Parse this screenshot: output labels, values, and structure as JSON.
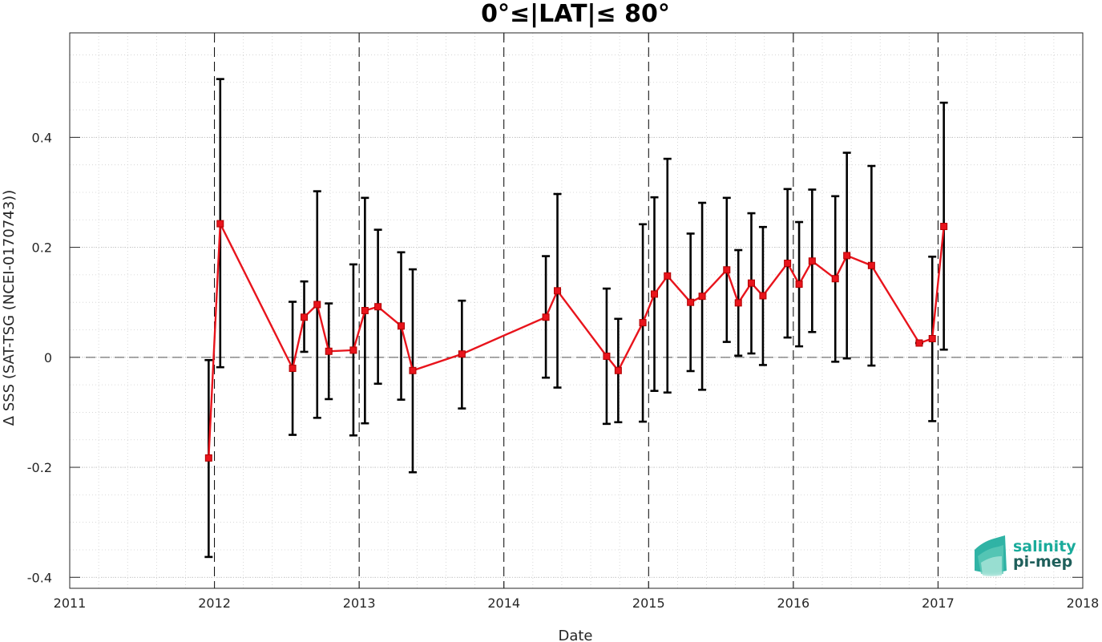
{
  "chart_data": {
    "type": "line",
    "title": "0°≤|LAT|≤ 80°",
    "xlabel": "Date",
    "ylabel": "Δ SSS (SAT-TSG (NCEI-0170743))",
    "xlim": [
      2011,
      2018
    ],
    "ylim": [
      -0.42,
      0.59
    ],
    "x_ticks": [
      2011,
      2012,
      2013,
      2014,
      2015,
      2016,
      2017,
      2018
    ],
    "x_tick_labels": [
      "2011",
      "2012",
      "2013",
      "2014",
      "2015",
      "2016",
      "2017",
      "2018"
    ],
    "y_ticks": [
      -0.4,
      -0.2,
      0,
      0.2,
      0.4
    ],
    "y_tick_labels": [
      "-0.4",
      "-0.2",
      "0",
      "0.2",
      "0.4"
    ],
    "grid": "major and minor, dotted",
    "year_boundary_lines": "dashed vertical at each year",
    "zero_line": "dashed horizontal at 0",
    "series": [
      {
        "color": "#e8141c",
        "errorbar_color": "#000000",
        "marker": "square",
        "points": [
          {
            "x": 2011.96,
            "y": -0.183,
            "low": -0.363,
            "high": -0.005
          },
          {
            "x": 2012.04,
            "y": 0.243,
            "low": -0.018,
            "high": 0.506
          },
          {
            "x": 2012.54,
            "y": -0.02,
            "low": -0.141,
            "high": 0.101
          },
          {
            "x": 2012.62,
            "y": 0.073,
            "low": 0.01,
            "high": 0.138
          },
          {
            "x": 2012.71,
            "y": 0.096,
            "low": -0.11,
            "high": 0.302
          },
          {
            "x": 2012.79,
            "y": 0.011,
            "low": -0.076,
            "high": 0.098
          },
          {
            "x": 2012.96,
            "y": 0.013,
            "low": -0.142,
            "high": 0.169
          },
          {
            "x": 2013.04,
            "y": 0.085,
            "low": -0.12,
            "high": 0.29
          },
          {
            "x": 2013.13,
            "y": 0.092,
            "low": -0.048,
            "high": 0.232
          },
          {
            "x": 2013.29,
            "y": 0.057,
            "low": -0.077,
            "high": 0.191
          },
          {
            "x": 2013.37,
            "y": -0.024,
            "low": -0.209,
            "high": 0.16
          },
          {
            "x": 2013.71,
            "y": 0.006,
            "low": -0.093,
            "high": 0.103
          },
          {
            "x": 2014.29,
            "y": 0.073,
            "low": -0.037,
            "high": 0.184
          },
          {
            "x": 2014.37,
            "y": 0.121,
            "low": -0.055,
            "high": 0.297
          },
          {
            "x": 2014.71,
            "y": 0.002,
            "low": -0.121,
            "high": 0.125
          },
          {
            "x": 2014.79,
            "y": -0.024,
            "low": -0.118,
            "high": 0.07
          },
          {
            "x": 2014.96,
            "y": 0.063,
            "low": -0.117,
            "high": 0.242
          },
          {
            "x": 2015.04,
            "y": 0.115,
            "low": -0.061,
            "high": 0.291
          },
          {
            "x": 2015.13,
            "y": 0.148,
            "low": -0.064,
            "high": 0.361
          },
          {
            "x": 2015.29,
            "y": 0.1,
            "low": -0.025,
            "high": 0.225
          },
          {
            "x": 2015.37,
            "y": 0.111,
            "low": -0.059,
            "high": 0.281
          },
          {
            "x": 2015.54,
            "y": 0.159,
            "low": 0.028,
            "high": 0.29
          },
          {
            "x": 2015.62,
            "y": 0.099,
            "low": 0.003,
            "high": 0.195
          },
          {
            "x": 2015.71,
            "y": 0.135,
            "low": 0.007,
            "high": 0.262
          },
          {
            "x": 2015.79,
            "y": 0.112,
            "low": -0.014,
            "high": 0.237
          },
          {
            "x": 2015.96,
            "y": 0.171,
            "low": 0.036,
            "high": 0.306
          },
          {
            "x": 2016.04,
            "y": 0.133,
            "low": 0.02,
            "high": 0.246
          },
          {
            "x": 2016.13,
            "y": 0.175,
            "low": 0.046,
            "high": 0.305
          },
          {
            "x": 2016.29,
            "y": 0.143,
            "low": -0.008,
            "high": 0.293
          },
          {
            "x": 2016.37,
            "y": 0.185,
            "low": -0.002,
            "high": 0.372
          },
          {
            "x": 2016.54,
            "y": 0.167,
            "low": -0.015,
            "high": 0.348
          },
          {
            "x": 2016.87,
            "y": 0.026,
            "low": 0.026,
            "high": 0.026
          },
          {
            "x": 2016.96,
            "y": 0.034,
            "low": -0.116,
            "high": 0.183
          },
          {
            "x": 2017.04,
            "y": 0.238,
            "low": 0.014,
            "high": 0.463
          }
        ]
      }
    ]
  },
  "logo": {
    "line1": "salinity",
    "line2": "pi-mep",
    "color1": "#1aab9b",
    "color2": "#1f5f5b"
  }
}
